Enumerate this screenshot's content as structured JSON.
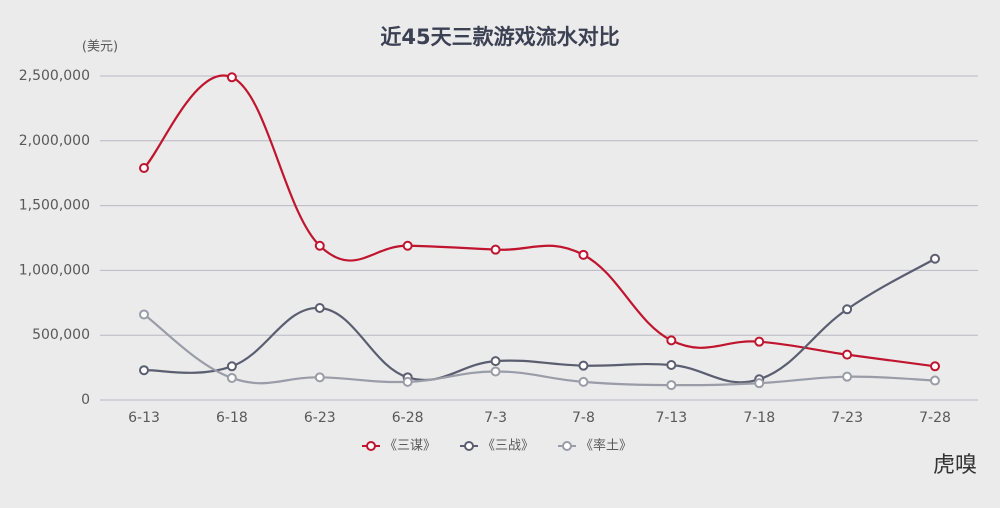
{
  "chart_data": {
    "type": "line",
    "title": "近45天三款游戏流水对比",
    "y_unit": "(美元)",
    "categories": [
      "6-13",
      "6-18",
      "6-23",
      "6-28",
      "7-3",
      "7-8",
      "7-13",
      "7-18",
      "7-23",
      "7-28"
    ],
    "series": [
      {
        "name": "《三谋》",
        "color": "#c0152f",
        "values": [
          1790000,
          2490000,
          1190000,
          1190000,
          1160000,
          1120000,
          460000,
          450000,
          350000,
          260000
        ]
      },
      {
        "name": "《三战》",
        "color": "#5a5e70",
        "values": [
          230000,
          260000,
          710000,
          175000,
          300000,
          265000,
          270000,
          160000,
          700000,
          1090000
        ]
      },
      {
        "name": "《率土》",
        "color": "#9a9ca8",
        "values": [
          660000,
          170000,
          175000,
          140000,
          220000,
          140000,
          115000,
          130000,
          180000,
          150000
        ]
      }
    ],
    "ylim": [
      0,
      2500000
    ],
    "yticks": [
      0,
      {
        "value": 500000,
        "label": "500,000"
      },
      {
        "value": 1000000,
        "label": "1,000,000"
      },
      {
        "value": 1500000,
        "label": "1,500,000"
      },
      {
        "value": 2000000,
        "label": "2,000,000"
      },
      {
        "value": 2500000,
        "label": "2,500,000"
      }
    ],
    "grid": true,
    "legend": "bottom",
    "watermark": "虎嗅"
  }
}
